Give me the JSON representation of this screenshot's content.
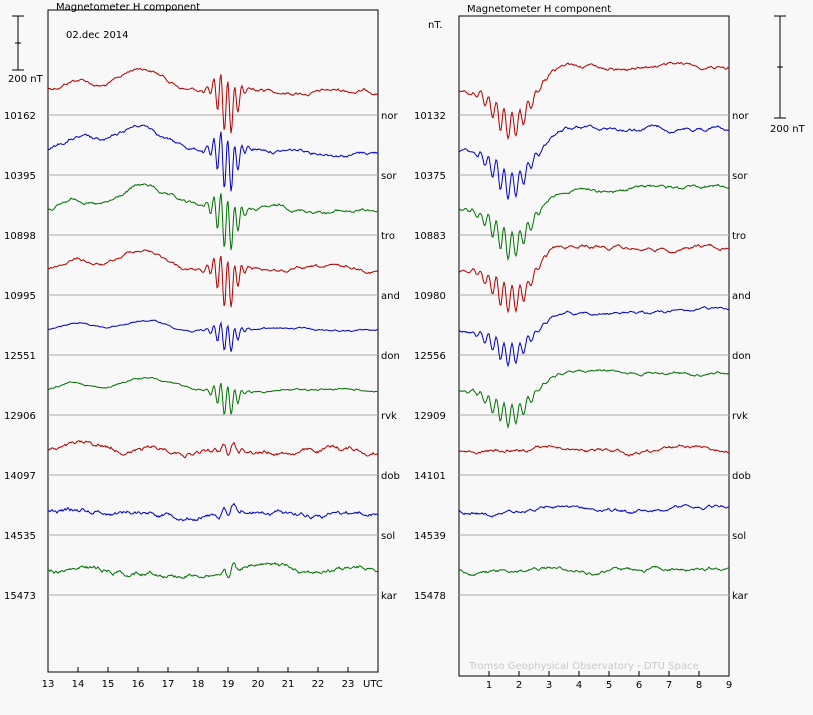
{
  "chart_data": [
    {
      "type": "line",
      "title": "Magnetometer H component",
      "subtitle": "02.dec 2014",
      "scale_label": "200 nT",
      "x_ticks": [
        "13",
        "14",
        "15",
        "16",
        "17",
        "18",
        "19",
        "20",
        "21",
        "22",
        "23"
      ],
      "x_unit": "UTC",
      "xlim": [
        13,
        24
      ],
      "stations": [
        {
          "code": "nor",
          "baseline": "10162",
          "color": "#b00000",
          "amp": 1.0
        },
        {
          "code": "sor",
          "baseline": "10395",
          "color": "#0000c0",
          "amp": 1.0
        },
        {
          "code": "tro",
          "baseline": "10898",
          "color": "#007000",
          "amp": 1.0
        },
        {
          "code": "and",
          "baseline": "10995",
          "color": "#b00000",
          "amp": 0.9
        },
        {
          "code": "don",
          "baseline": "12551",
          "color": "#0000c0",
          "amp": 0.5
        },
        {
          "code": "rvk",
          "baseline": "12906",
          "color": "#007000",
          "amp": 0.55
        },
        {
          "code": "dob",
          "baseline": "14097",
          "color": "#b00000",
          "amp": 0.12
        },
        {
          "code": "sol",
          "baseline": "14535",
          "color": "#0000c0",
          "amp": 0.12
        },
        {
          "code": "kar",
          "baseline": "15473",
          "color": "#007000",
          "amp": 0.12
        }
      ]
    },
    {
      "type": "line",
      "title": "Magnetometer H component",
      "unit_label": "nT.",
      "scale_label": "200 nT",
      "x_ticks": [
        "1",
        "2",
        "3",
        "4",
        "5",
        "6",
        "7",
        "8",
        "9"
      ],
      "xlim": [
        0,
        9
      ],
      "stations": [
        {
          "code": "nor",
          "baseline": "10132",
          "color": "#b00000",
          "amp": 1.0
        },
        {
          "code": "sor",
          "baseline": "10375",
          "color": "#0000c0",
          "amp": 1.0
        },
        {
          "code": "tro",
          "baseline": "10883",
          "color": "#007000",
          "amp": 1.0
        },
        {
          "code": "and",
          "baseline": "10980",
          "color": "#b00000",
          "amp": 1.0
        },
        {
          "code": "don",
          "baseline": "12556",
          "color": "#0000c0",
          "amp": 0.8
        },
        {
          "code": "rvk",
          "baseline": "12909",
          "color": "#007000",
          "amp": 0.8
        },
        {
          "code": "dob",
          "baseline": "14101",
          "color": "#b00000",
          "amp": 0.1
        },
        {
          "code": "sol",
          "baseline": "14539",
          "color": "#0000c0",
          "amp": 0.1
        },
        {
          "code": "kar",
          "baseline": "15478",
          "color": "#007000",
          "amp": 0.1
        }
      ]
    }
  ],
  "credit": "Tromso Geophysical Observatory - DTU Space"
}
